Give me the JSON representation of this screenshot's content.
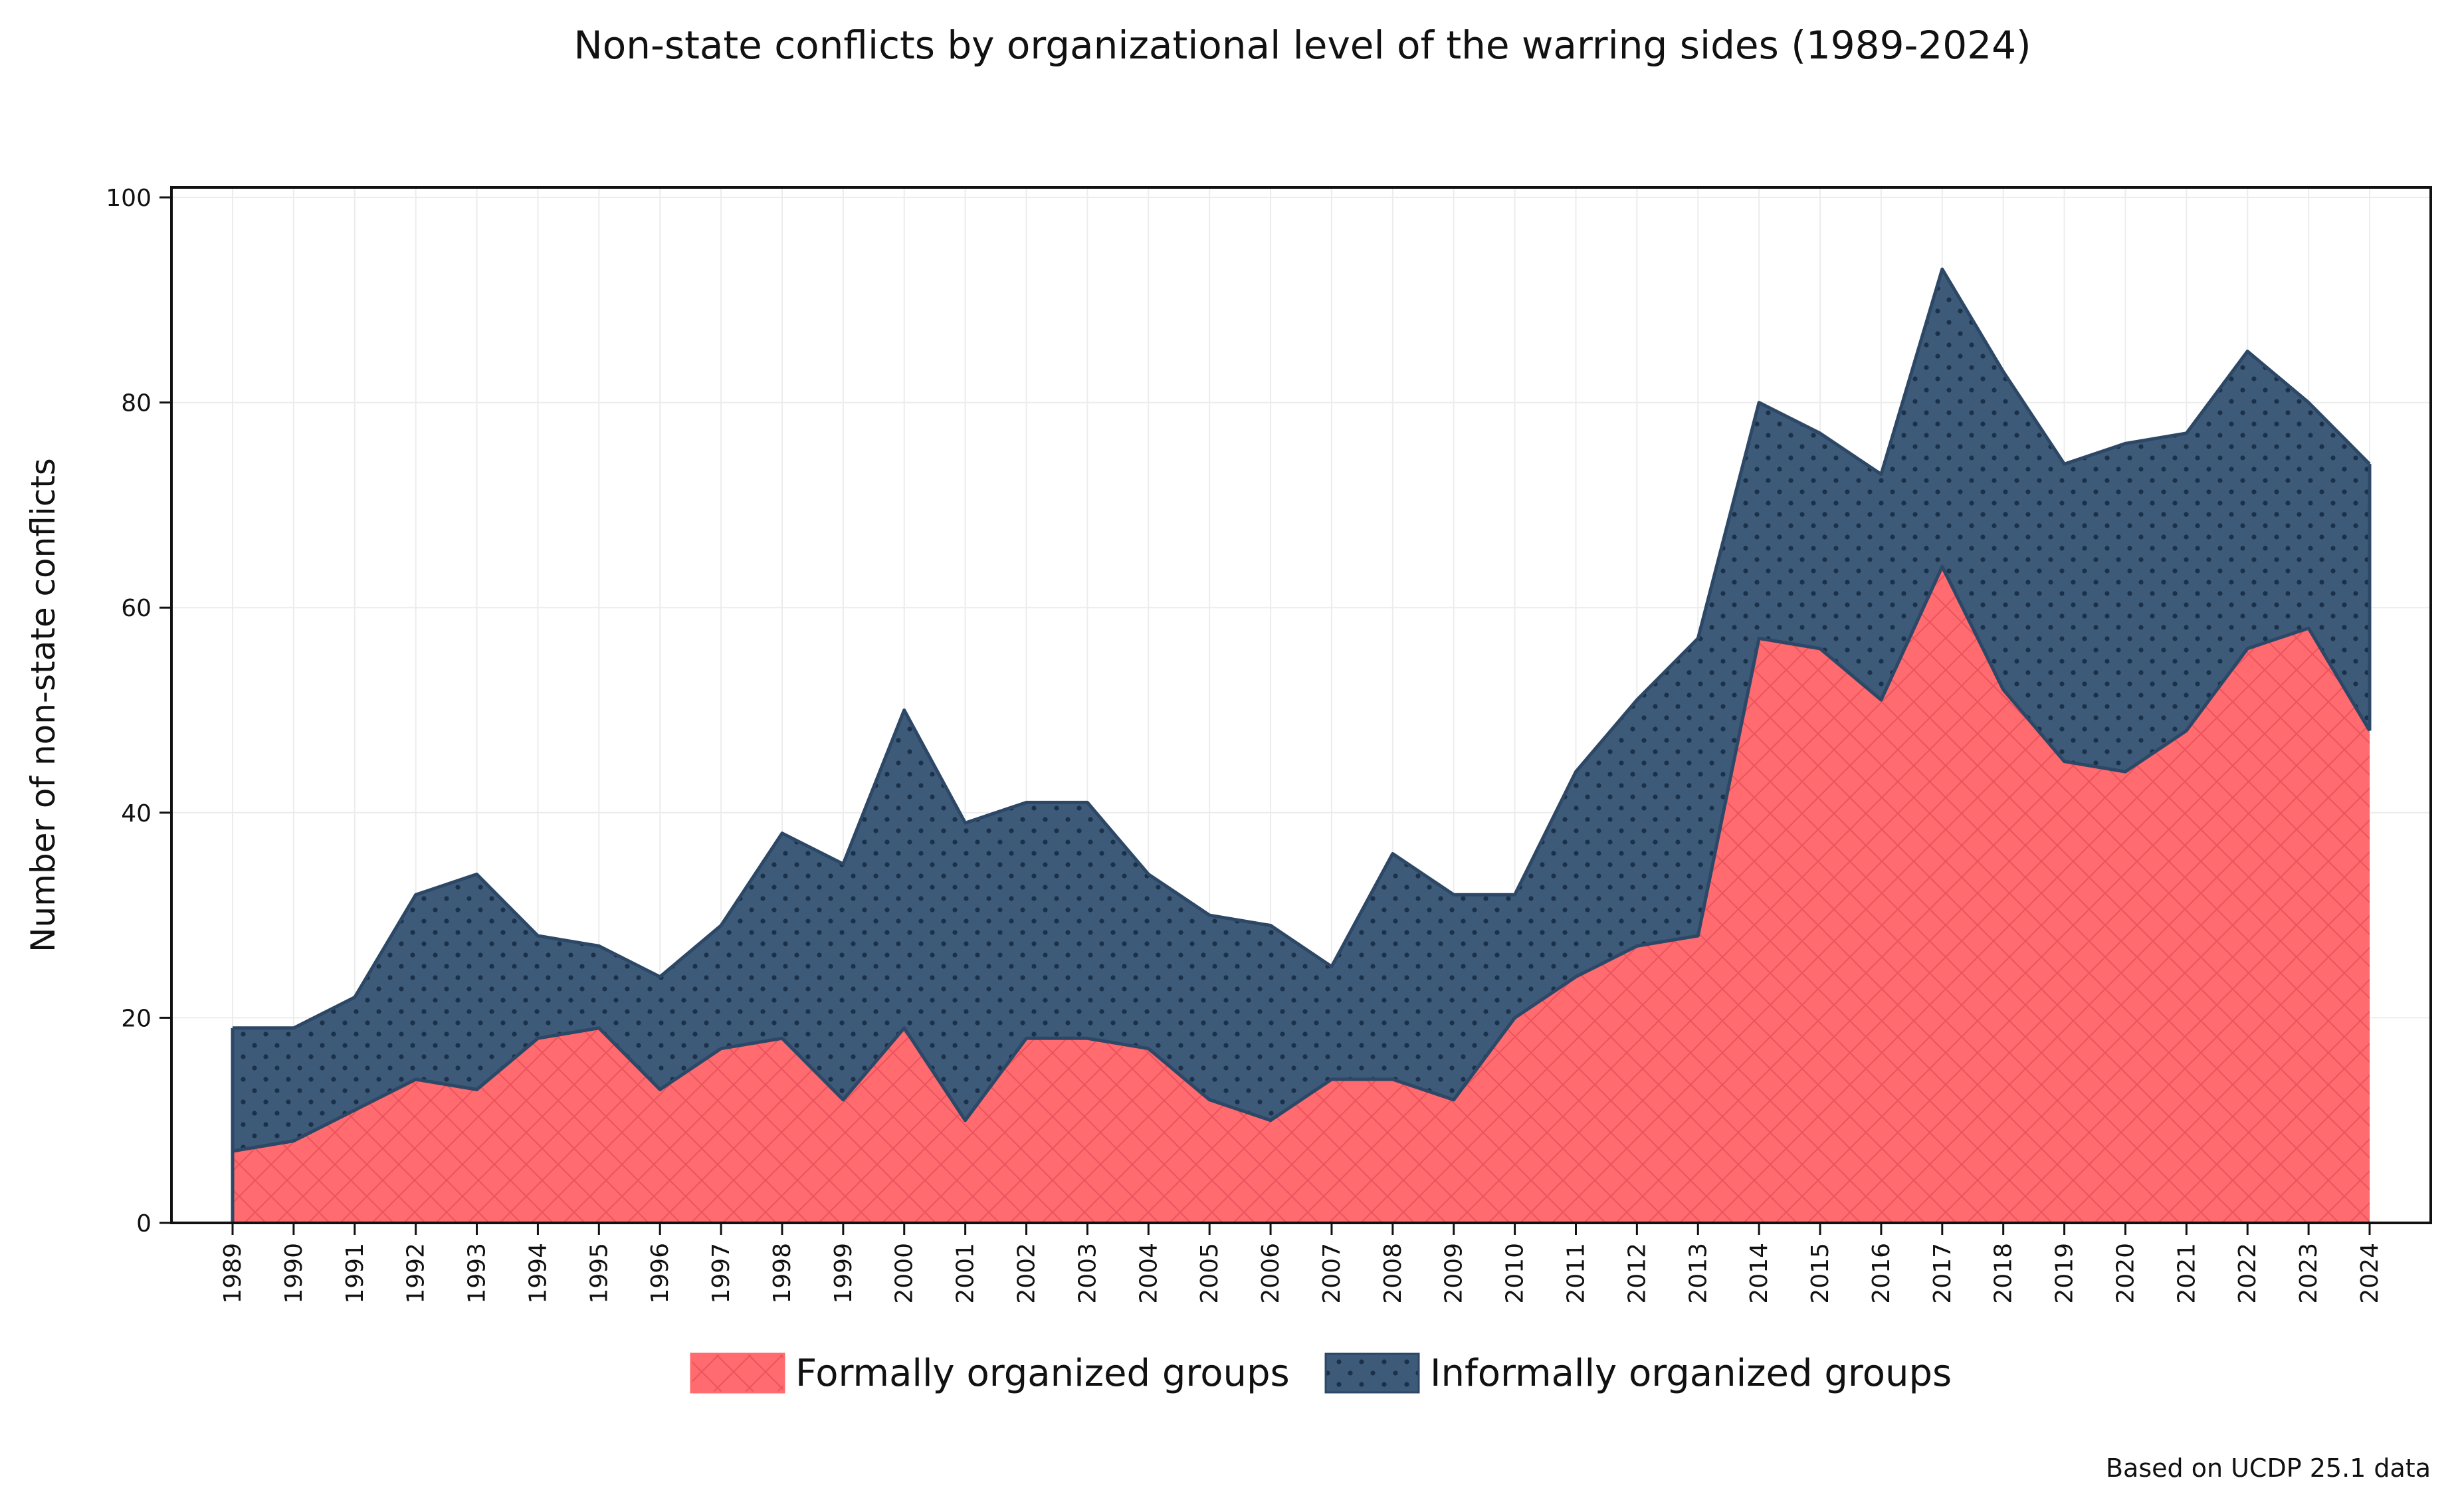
{
  "chart_data": {
    "type": "area",
    "stacked": true,
    "title": "Non-state conflicts by organizational level of the warring sides (1989-2024)",
    "xlabel": "",
    "ylabel": "Number of non-state conflicts",
    "ylim": [
      0,
      100
    ],
    "yticks": [
      "0",
      "20",
      "40",
      "60",
      "80",
      "100"
    ],
    "grid": true,
    "legend_position": "bottom-center",
    "categories": [
      "1989",
      "1990",
      "1991",
      "1992",
      "1993",
      "1994",
      "1995",
      "1996",
      "1997",
      "1998",
      "1999",
      "2000",
      "2001",
      "2002",
      "2003",
      "2004",
      "2005",
      "2006",
      "2007",
      "2008",
      "2009",
      "2010",
      "2011",
      "2012",
      "2013",
      "2014",
      "2015",
      "2016",
      "2017",
      "2018",
      "2019",
      "2020",
      "2021",
      "2022",
      "2023",
      "2024"
    ],
    "series": [
      {
        "name": "Formally organized groups",
        "color": "#ff6b6f",
        "values": [
          7,
          8,
          11,
          14,
          13,
          18,
          19,
          13,
          17,
          18,
          12,
          19,
          10,
          18,
          18,
          17,
          12,
          10,
          14,
          14,
          12,
          20,
          24,
          27,
          28,
          57,
          56,
          51,
          64,
          52,
          45,
          44,
          48,
          56,
          58,
          48
        ]
      },
      {
        "name": "Informally organized groups",
        "color": "#3d5a78",
        "values": [
          12,
          11,
          11,
          18,
          21,
          10,
          8,
          11,
          12,
          20,
          23,
          31,
          29,
          23,
          23,
          17,
          18,
          19,
          11,
          22,
          20,
          12,
          20,
          24,
          29,
          23,
          21,
          22,
          29,
          31,
          29,
          32,
          29,
          29,
          22,
          26
        ]
      }
    ],
    "source_note": "Based on UCDP 25.1 data"
  }
}
